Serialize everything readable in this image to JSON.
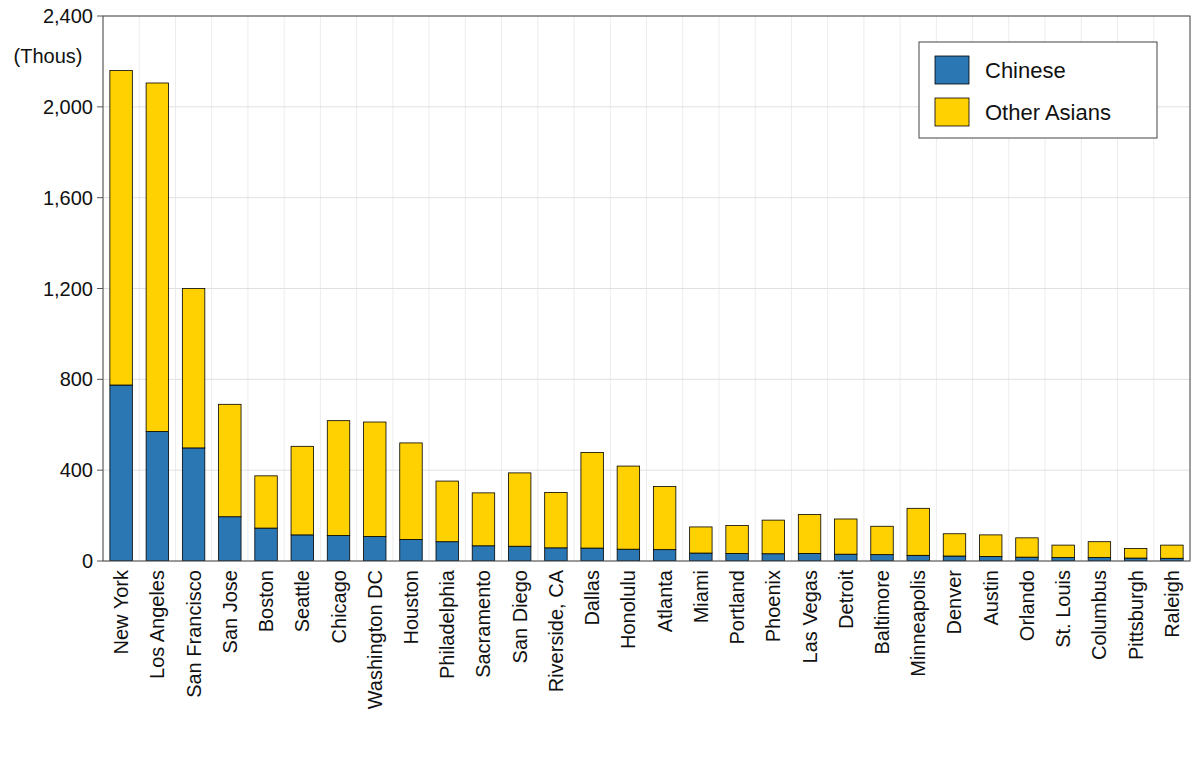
{
  "chart_data": {
    "type": "bar",
    "stacked": true,
    "grid": true,
    "legend": "upper right",
    "y_label": "(Thous)",
    "categories": [
      "New York",
      "Los Angeles",
      "San Francisco",
      "San Jose",
      "Boston",
      "Seattle",
      "Chicago",
      "Washington DC",
      "Houston",
      "Philadelphia",
      "Sacramento",
      "San Diego",
      "Riverside, CA",
      "Dallas",
      "Honolulu",
      "Atlanta",
      "Miami",
      "Portland",
      "Phoenix",
      "Las Vegas",
      "Detroit",
      "Baltimore",
      "Minneapolis",
      "Denver",
      "Austin",
      "Orlando",
      "St. Louis",
      "Columbus",
      "Pittsburgh",
      "Raleigh"
    ],
    "series": [
      {
        "name": "Chinese",
        "color": "#2b77b3",
        "values": [
          775,
          570,
          498,
          195,
          145,
          115,
          112,
          108,
          95,
          85,
          67,
          65,
          58,
          57,
          52,
          50,
          35,
          33,
          32,
          33,
          30,
          28,
          25,
          22,
          20,
          17,
          15,
          15,
          13,
          12
        ]
      },
      {
        "name": "Other Asians",
        "color": "#ffd100",
        "values": [
          1385,
          1535,
          702,
          495,
          230,
          390,
          506,
          504,
          425,
          267,
          233,
          323,
          244,
          421,
          366,
          278,
          115,
          123,
          148,
          172,
          155,
          125,
          207,
          98,
          95,
          85,
          55,
          70,
          42,
          58
        ]
      }
    ],
    "ylim": [
      0,
      2400
    ],
    "yticks": [
      0,
      400,
      800,
      {
        "value": 1200,
        "label": "1,200"
      },
      {
        "value": 1600,
        "label": "1,600"
      },
      {
        "value": 2000,
        "label": "2,000"
      },
      {
        "value": 2400,
        "label": "2,400"
      }
    ]
  }
}
